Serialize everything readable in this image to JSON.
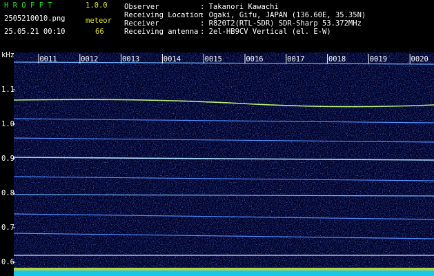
{
  "header": {
    "app": "H R O F F T",
    "version": "1.0.0",
    "file": "2505210010.png",
    "mode": "meteor",
    "datetime": "25.05.21 00:10",
    "count": 66
  },
  "info": [
    {
      "label": "Observer",
      "value": ": Takanori Kawachi"
    },
    {
      "label": "Receiving Location",
      "value": ": Ogaki, Gifu, JAPAN (136.60E, 35.35N)"
    },
    {
      "label": "Receiver",
      "value": ": R820T2(RTL-SDR) SDR-Sharp 53.372MHz"
    },
    {
      "label": "Receiving antenna",
      "value": ": 2el-HB9CV Vertical (el. E-W)"
    }
  ],
  "axis": {
    "unit": "kHz",
    "frequencies": [
      "1.1",
      "1.0",
      "0.9",
      "0.8",
      "0.7",
      "0.6"
    ],
    "times": [
      "0011",
      "0012",
      "0013",
      "0014",
      "0015",
      "0016",
      "0017",
      "0018",
      "0019",
      "0020"
    ]
  }
}
